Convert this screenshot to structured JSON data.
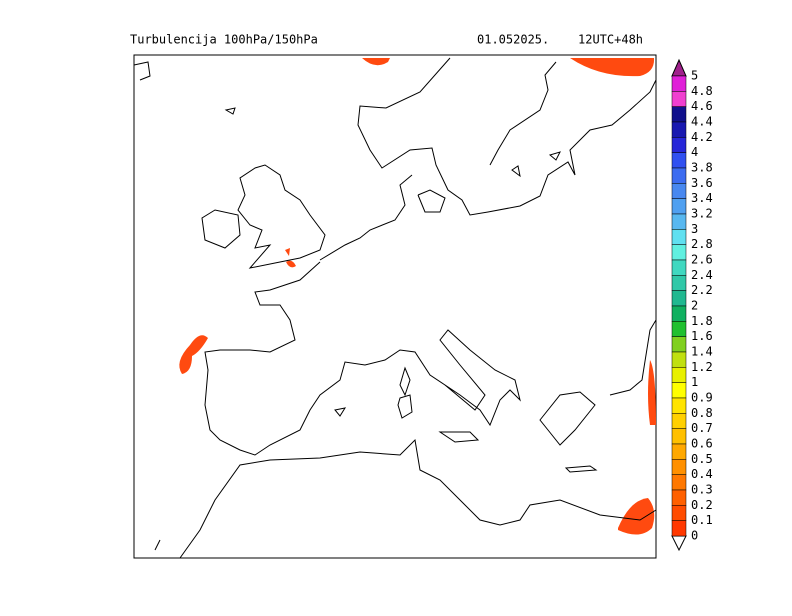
{
  "header": {
    "title": "Turbulencija 100hPa/150hPa",
    "date": "01.052025.",
    "run": "12UTC+48h"
  },
  "colorbar": {
    "labels": [
      "5",
      "4.8",
      "4.6",
      "4.4",
      "4.2",
      "4",
      "3.8",
      "3.6",
      "3.4",
      "3.2",
      "3",
      "2.8",
      "2.6",
      "2.4",
      "2.2",
      "2",
      "1.8",
      "1.6",
      "1.4",
      "1.2",
      "1",
      "0.9",
      "0.8",
      "0.7",
      "0.6",
      "0.5",
      "0.4",
      "0.3",
      "0.2",
      "0.1",
      "0"
    ],
    "colors": [
      "#e020d8",
      "#f040d0",
      "#10108c",
      "#1818b0",
      "#2626d8",
      "#3050f0",
      "#3c6cf0",
      "#4888f0",
      "#50a0f0",
      "#58b8f0",
      "#60e0f0",
      "#60f0e0",
      "#40d8c0",
      "#30c8a8",
      "#20b890",
      "#10b060",
      "#20c030",
      "#80d020",
      "#c0e010",
      "#e8f000",
      "#ffff00",
      "#ffe400",
      "#ffd000",
      "#ffc000",
      "#ffa800",
      "#ff9000",
      "#ff7800",
      "#ff6000",
      "#ff4c00",
      "#ff3800"
    ],
    "over_color": "#a0208c",
    "under_color": "#ffffff"
  }
}
